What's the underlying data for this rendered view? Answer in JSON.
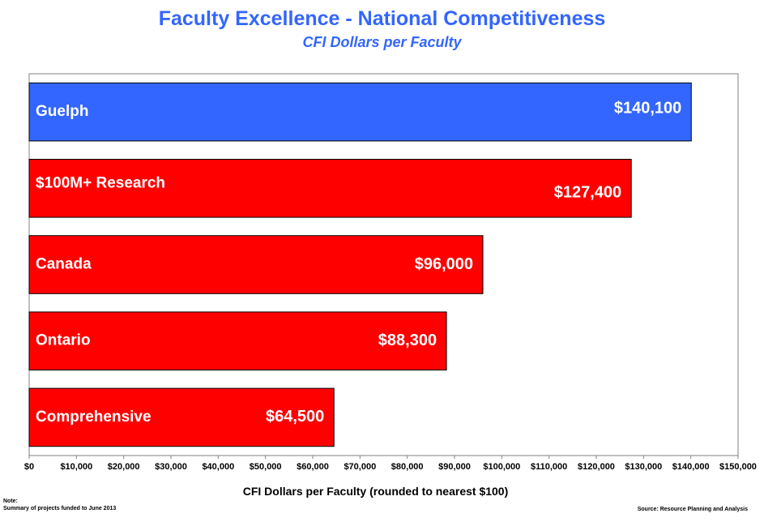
{
  "title": "Faculty Excellence - National Competitiveness",
  "subtitle": "CFI Dollars per Faculty",
  "note": {
    "label": "Note:",
    "text": "Summary  of projects funded to June 2013"
  },
  "source": "Source: Resource Planning and Analysis",
  "colors": {
    "highlight": "#3366ff",
    "bars": "#ff0000",
    "title": "#3366ff"
  },
  "chart_data": {
    "type": "bar",
    "orientation": "horizontal",
    "title": "Faculty Excellence - National Competitiveness",
    "subtitle": "CFI Dollars per Faculty",
    "xlabel": "CFI Dollars per Faculty (rounded to nearest $100)",
    "ylabel": "",
    "xlim": [
      0,
      150000
    ],
    "grid": false,
    "legend": "none",
    "categories": [
      "Guelph",
      "$100M+ Research",
      "Canada",
      "Ontario",
      "Comprehensive"
    ],
    "values": [
      140100,
      127400,
      96000,
      88300,
      64500
    ],
    "value_labels": [
      "$140,100",
      "$127,400",
      "$96,000",
      "$88,300",
      "$64,500"
    ],
    "bar_colors": [
      "#3366ff",
      "#ff0000",
      "#ff0000",
      "#ff0000",
      "#ff0000"
    ],
    "ticks": [
      0,
      10000,
      20000,
      30000,
      40000,
      50000,
      60000,
      70000,
      80000,
      90000,
      100000,
      110000,
      120000,
      130000,
      140000,
      150000
    ],
    "tick_labels": [
      "$0",
      "$10,000",
      "$20,000",
      "$30,000",
      "$40,000",
      "$50,000",
      "$60,000",
      "$70,000",
      "$80,000",
      "$90,000",
      "$100,000",
      "$110,000",
      "$120,000",
      "$130,000",
      "$140,000",
      "$150,000"
    ]
  }
}
